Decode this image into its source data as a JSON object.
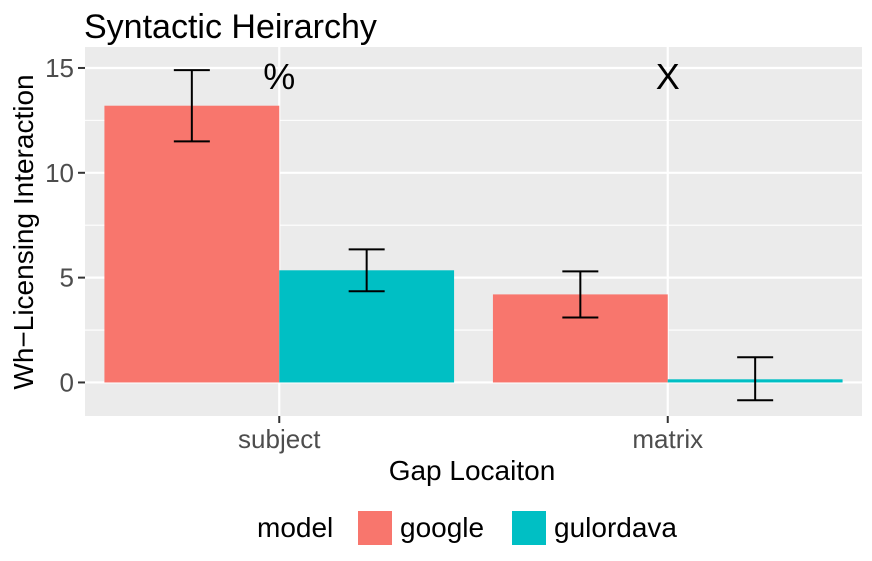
{
  "chart_data": {
    "type": "bar",
    "title": "Syntactic Heirarchy",
    "xlabel": "Gap Locaiton",
    "ylabel": "Wh−Licensing Interaction",
    "categories": [
      "subject",
      "matrix"
    ],
    "ylim": [
      -1.6,
      16.0
    ],
    "yticks": [
      0,
      5,
      10,
      15
    ],
    "grid": true,
    "legend_position": "bottom",
    "legend_title": "model",
    "series": [
      {
        "name": "google",
        "color": "#F8766D",
        "values": [
          13.2,
          4.2
        ],
        "error_low": [
          11.5,
          3.1
        ],
        "error_high": [
          14.9,
          5.3
        ]
      },
      {
        "name": "gulordava",
        "color": "#00BFC4",
        "values": [
          5.35,
          0.15
        ],
        "error_low": [
          4.35,
          -0.85
        ],
        "error_high": [
          6.35,
          1.2
        ]
      }
    ],
    "annotations": [
      {
        "text": "%",
        "category": "subject"
      },
      {
        "text": "X",
        "category": "matrix"
      }
    ]
  }
}
